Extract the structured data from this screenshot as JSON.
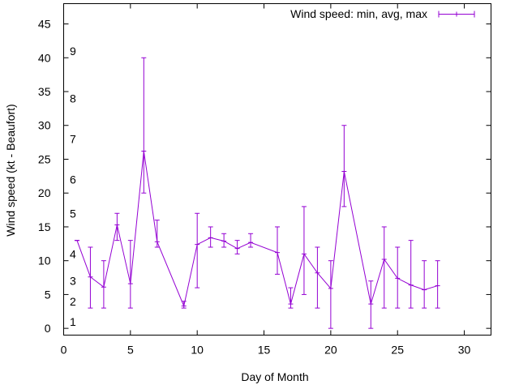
{
  "chart_data": {
    "type": "errorbar-line",
    "title": "",
    "xlabel": "Day of Month",
    "ylabel": "Wind speed (kt - Beaufort)",
    "xlim": [
      0,
      32
    ],
    "ylim": [
      -1,
      48
    ],
    "x_ticks": [
      0,
      5,
      10,
      15,
      20,
      25,
      30
    ],
    "y_ticks": [
      0,
      5,
      10,
      15,
      20,
      25,
      30,
      35,
      40,
      45
    ],
    "beaufort_labels": [
      {
        "label": "1",
        "value": 1
      },
      {
        "label": "2",
        "value": 4
      },
      {
        "label": "3",
        "value": 7
      },
      {
        "label": "4",
        "value": 11
      },
      {
        "label": "5",
        "value": 17
      },
      {
        "label": "6",
        "value": 22
      },
      {
        "label": "7",
        "value": 28
      },
      {
        "label": "8",
        "value": 34
      },
      {
        "label": "9",
        "value": 41
      }
    ],
    "legend": {
      "label": "Wind speed: min, avg, max",
      "position": "top-right"
    },
    "series_color": "#9400d3",
    "series": [
      {
        "name": "Wind speed: min, avg, max",
        "x": [
          1,
          2,
          3,
          4,
          5,
          6,
          7,
          9,
          10,
          11,
          12,
          13,
          14,
          16,
          17,
          18,
          19,
          20,
          21,
          23,
          24,
          25,
          26,
          27,
          28
        ],
        "min": [
          13,
          3,
          3,
          13,
          3,
          20,
          12,
          3,
          6,
          12,
          12,
          11,
          12,
          8,
          3,
          5,
          3,
          0,
          18,
          0,
          3,
          3,
          3,
          3,
          3
        ],
        "avg": [
          13,
          7.6,
          6.1,
          15.3,
          6.6,
          26.2,
          12.8,
          3.3,
          12.4,
          13.4,
          12.9,
          11.8,
          12.7,
          11.2,
          3.6,
          11.0,
          8.2,
          5.9,
          23.2,
          3.6,
          10.2,
          7.4,
          6.4,
          5.7,
          6.3
        ],
        "max": [
          13,
          12,
          10,
          17,
          13,
          40,
          16,
          4,
          17,
          15,
          14,
          13,
          14,
          15,
          6,
          18,
          12,
          10,
          30,
          7,
          15,
          12,
          13,
          10,
          10
        ]
      }
    ]
  }
}
